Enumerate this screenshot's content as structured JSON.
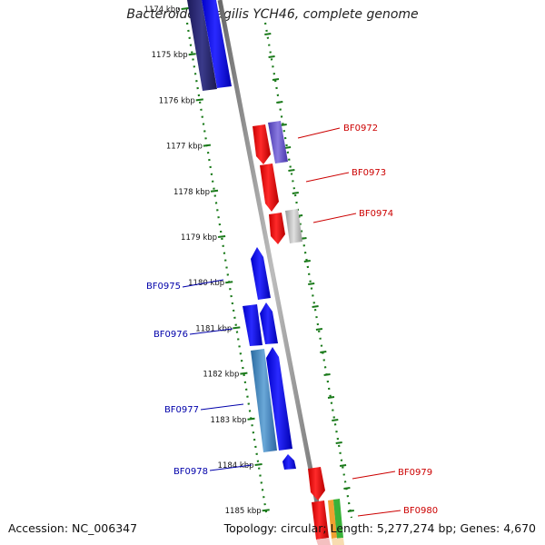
{
  "title": "Bacteroides fragilis YCH46, complete genome",
  "footer": {
    "accession": "Accession: NC_006347",
    "topology": "Topology: circular; Length: 5,277,274 bp; Genes: 4,670"
  },
  "kbp_ticks": [
    {
      "label": "1174 kbp"
    },
    {
      "label": "1175 kbp"
    },
    {
      "label": "1176 kbp"
    },
    {
      "label": "1177 kbp"
    },
    {
      "label": "1178 kbp"
    },
    {
      "label": "1179 kbp"
    },
    {
      "label": "1180 kbp"
    },
    {
      "label": "1181 kbp"
    },
    {
      "label": "1182 kbp"
    },
    {
      "label": "1183 kbp"
    },
    {
      "label": "1184 kbp"
    },
    {
      "label": "1185 kbp"
    }
  ],
  "gene_labels": {
    "right": [
      "BF0972",
      "BF0973",
      "BF0974",
      "BF0979",
      "BF0980"
    ],
    "left": [
      "BF0975",
      "BF0976",
      "BF0977",
      "BF0978"
    ]
  },
  "colors": {
    "forward_label": "#cc0000",
    "reverse_label": "#0000aa",
    "backbone": "#8a8a8a",
    "dots": "#1a7a1a"
  }
}
